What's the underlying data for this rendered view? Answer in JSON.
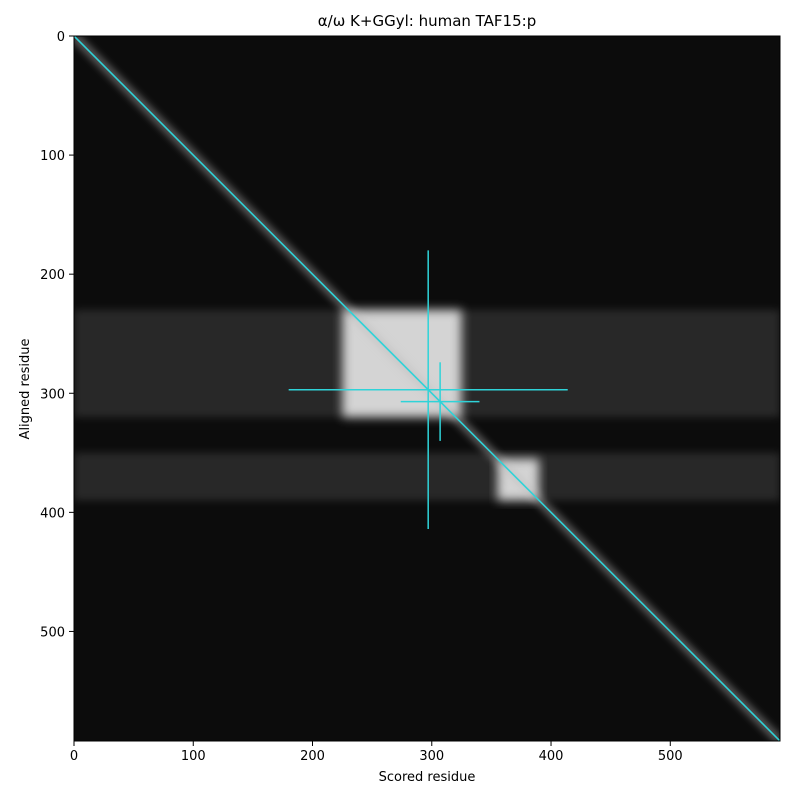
{
  "chart_data": {
    "type": "heatmap",
    "title": "α/ω K+GGyl: human TAF15:p",
    "xlabel": "Scored residue",
    "ylabel": "Aligned residue",
    "xlim": [
      0,
      592
    ],
    "ylim": [
      592,
      0
    ],
    "xticks": [
      0,
      100,
      200,
      300,
      400,
      500
    ],
    "yticks": [
      0,
      100,
      200,
      300,
      400,
      500
    ],
    "background": "#0c0c0c",
    "block_color": "#f2f2f2",
    "line_color": "#2fd3d8",
    "bands": [
      {
        "y": [
          230,
          320
        ]
      },
      {
        "y": [
          350,
          390
        ]
      }
    ],
    "blocks": [
      {
        "x": [
          225,
          325
        ],
        "y": [
          230,
          320
        ]
      },
      {
        "x": [
          355,
          390
        ],
        "y": [
          355,
          390
        ]
      }
    ],
    "diagonal": {
      "x": [
        0,
        592
      ],
      "y": [
        0,
        592
      ]
    },
    "crosshairs": [
      {
        "x": 297,
        "y": 297,
        "half": 117
      },
      {
        "x": 307,
        "y": 307,
        "half": 33
      }
    ]
  }
}
